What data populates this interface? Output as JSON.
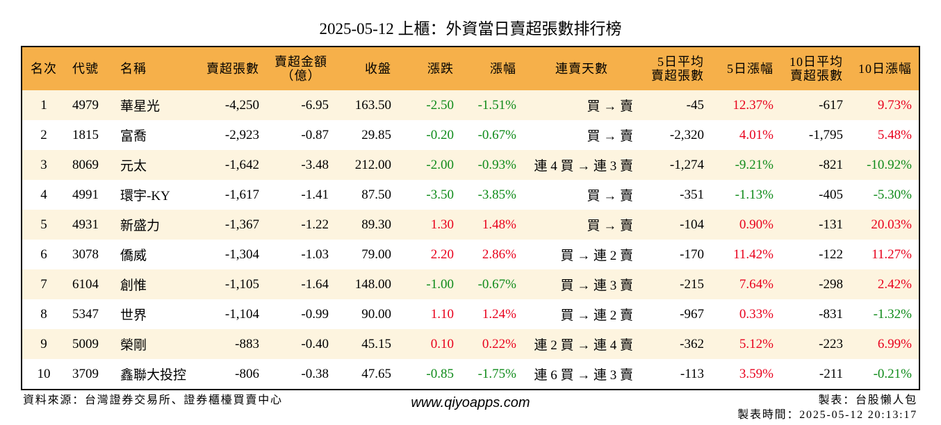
{
  "colors": {
    "header_bg": "#f6b04a",
    "row_alt_bg": "#fdf4df",
    "up": "#e8001c",
    "down": "#0f8b1a",
    "border": "#000000"
  },
  "chart_data": {
    "type": "table",
    "title": "2025-05-12 上櫃：外資當日賣超張數排行榜",
    "columns": [
      {
        "key": "rank",
        "line1": "名次"
      },
      {
        "key": "code",
        "line1": "代號"
      },
      {
        "key": "name",
        "line1": "名稱"
      },
      {
        "key": "sell_lots",
        "line1": "賣超張數"
      },
      {
        "key": "sell_amount",
        "line1": "賣超金額",
        "line2": "（億）"
      },
      {
        "key": "close",
        "line1": "收盤"
      },
      {
        "key": "change",
        "line1": "漲跌"
      },
      {
        "key": "change_pct",
        "line1": "漲幅"
      },
      {
        "key": "streak",
        "line1": "連賣天數"
      },
      {
        "key": "avg5_sell_lots",
        "line1": "5日平均",
        "line2": "賣超張數"
      },
      {
        "key": "chg5_pct",
        "line1": "5日漲幅"
      },
      {
        "key": "avg10_sell_lots",
        "line1": "10日平均",
        "line2": "賣超張數"
      },
      {
        "key": "chg10_pct",
        "line1": "10日漲幅"
      }
    ],
    "rows": [
      {
        "rank": "1",
        "code": "4979",
        "name": "華星光",
        "sell_lots": "-4,250",
        "sell_amount": "-6.95",
        "close": "163.50",
        "change": "-2.50",
        "change_pct": "-1.51%",
        "streak": "買 → 賣",
        "avg5_sell_lots": "-45",
        "chg5_pct": "12.37%",
        "avg10_sell_lots": "-617",
        "chg10_pct": "9.73%"
      },
      {
        "rank": "2",
        "code": "1815",
        "name": "富喬",
        "sell_lots": "-2,923",
        "sell_amount": "-0.87",
        "close": "29.85",
        "change": "-0.20",
        "change_pct": "-0.67%",
        "streak": "買 → 賣",
        "avg5_sell_lots": "-2,320",
        "chg5_pct": "4.01%",
        "avg10_sell_lots": "-1,795",
        "chg10_pct": "5.48%"
      },
      {
        "rank": "3",
        "code": "8069",
        "name": "元太",
        "sell_lots": "-1,642",
        "sell_amount": "-3.48",
        "close": "212.00",
        "change": "-2.00",
        "change_pct": "-0.93%",
        "streak": "連 4 買 → 連 3 賣",
        "avg5_sell_lots": "-1,274",
        "chg5_pct": "-9.21%",
        "avg10_sell_lots": "-821",
        "chg10_pct": "-10.92%"
      },
      {
        "rank": "4",
        "code": "4991",
        "name": "環宇-KY",
        "sell_lots": "-1,617",
        "sell_amount": "-1.41",
        "close": "87.50",
        "change": "-3.50",
        "change_pct": "-3.85%",
        "streak": "買 → 賣",
        "avg5_sell_lots": "-351",
        "chg5_pct": "-1.13%",
        "avg10_sell_lots": "-405",
        "chg10_pct": "-5.30%"
      },
      {
        "rank": "5",
        "code": "4931",
        "name": "新盛力",
        "sell_lots": "-1,367",
        "sell_amount": "-1.22",
        "close": "89.30",
        "change": "1.30",
        "change_pct": "1.48%",
        "streak": "買 → 賣",
        "avg5_sell_lots": "-104",
        "chg5_pct": "0.90%",
        "avg10_sell_lots": "-131",
        "chg10_pct": "20.03%"
      },
      {
        "rank": "6",
        "code": "3078",
        "name": "僑威",
        "sell_lots": "-1,304",
        "sell_amount": "-1.03",
        "close": "79.00",
        "change": "2.20",
        "change_pct": "2.86%",
        "streak": "買 → 連 2 賣",
        "avg5_sell_lots": "-170",
        "chg5_pct": "11.42%",
        "avg10_sell_lots": "-122",
        "chg10_pct": "11.27%"
      },
      {
        "rank": "7",
        "code": "6104",
        "name": "創惟",
        "sell_lots": "-1,105",
        "sell_amount": "-1.64",
        "close": "148.00",
        "change": "-1.00",
        "change_pct": "-0.67%",
        "streak": "買 → 連 3 賣",
        "avg5_sell_lots": "-215",
        "chg5_pct": "7.64%",
        "avg10_sell_lots": "-298",
        "chg10_pct": "2.42%"
      },
      {
        "rank": "8",
        "code": "5347",
        "name": "世界",
        "sell_lots": "-1,104",
        "sell_amount": "-0.99",
        "close": "90.00",
        "change": "1.10",
        "change_pct": "1.24%",
        "streak": "買 → 連 2 賣",
        "avg5_sell_lots": "-967",
        "chg5_pct": "0.33%",
        "avg10_sell_lots": "-831",
        "chg10_pct": "-1.32%"
      },
      {
        "rank": "9",
        "code": "5009",
        "name": "榮剛",
        "sell_lots": "-883",
        "sell_amount": "-0.40",
        "close": "45.15",
        "change": "0.10",
        "change_pct": "0.22%",
        "streak": "連 2 買 → 連 4 賣",
        "avg5_sell_lots": "-362",
        "chg5_pct": "5.12%",
        "avg10_sell_lots": "-223",
        "chg10_pct": "6.99%"
      },
      {
        "rank": "10",
        "code": "3709",
        "name": "鑫聯大投控",
        "sell_lots": "-806",
        "sell_amount": "-0.38",
        "close": "47.65",
        "change": "-0.85",
        "change_pct": "-1.75%",
        "streak": "連 6 買 → 連 3 賣",
        "avg5_sell_lots": "-113",
        "chg5_pct": "3.59%",
        "avg10_sell_lots": "-211",
        "chg10_pct": "-0.21%"
      }
    ]
  },
  "footer": {
    "source": "資料來源：台灣證券交易所、證券櫃檯買賣中心",
    "site": "www.qiyoapps.com",
    "author": "製表：台股懶人包",
    "generated_time": "製表時間：2025-05-12 20:13:17"
  }
}
